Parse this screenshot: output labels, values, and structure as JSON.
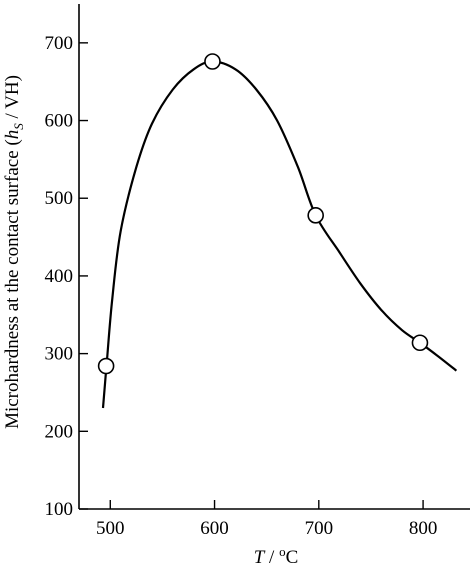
{
  "chart_data": {
    "type": "scatter",
    "title": "",
    "xlabel": {
      "var": "T",
      "sep": " / ",
      "unit_sup": "o",
      "unit": "C"
    },
    "ylabel": {
      "text": "Microhardness at the contact surface  (",
      "var": "h",
      "sub": "S",
      "unit": " / VH)"
    },
    "xlim": [
      470,
      845
    ],
    "ylim": [
      100,
      750
    ],
    "x_ticks": [
      500,
      600,
      700,
      800
    ],
    "y_ticks": [
      100,
      200,
      300,
      400,
      500,
      600,
      700
    ],
    "series": [
      {
        "kind": "markers",
        "points": [
          {
            "x": 496,
            "y": 284
          },
          {
            "x": 598,
            "y": 676
          },
          {
            "x": 697,
            "y": 478
          },
          {
            "x": 797,
            "y": 314
          }
        ]
      },
      {
        "kind": "fit-curve",
        "points": [
          {
            "x": 493,
            "y": 230
          },
          {
            "x": 497,
            "y": 295
          },
          {
            "x": 502,
            "y": 372
          },
          {
            "x": 510,
            "y": 458
          },
          {
            "x": 525,
            "y": 540
          },
          {
            "x": 540,
            "y": 596
          },
          {
            "x": 560,
            "y": 640
          },
          {
            "x": 580,
            "y": 666
          },
          {
            "x": 598,
            "y": 676
          },
          {
            "x": 620,
            "y": 666
          },
          {
            "x": 640,
            "y": 640
          },
          {
            "x": 660,
            "y": 600
          },
          {
            "x": 680,
            "y": 540
          },
          {
            "x": 697,
            "y": 478
          },
          {
            "x": 720,
            "y": 430
          },
          {
            "x": 740,
            "y": 390
          },
          {
            "x": 760,
            "y": 356
          },
          {
            "x": 780,
            "y": 330
          },
          {
            "x": 797,
            "y": 314
          },
          {
            "x": 815,
            "y": 296
          },
          {
            "x": 832,
            "y": 278
          }
        ]
      }
    ],
    "grid": false,
    "legend": "none"
  }
}
